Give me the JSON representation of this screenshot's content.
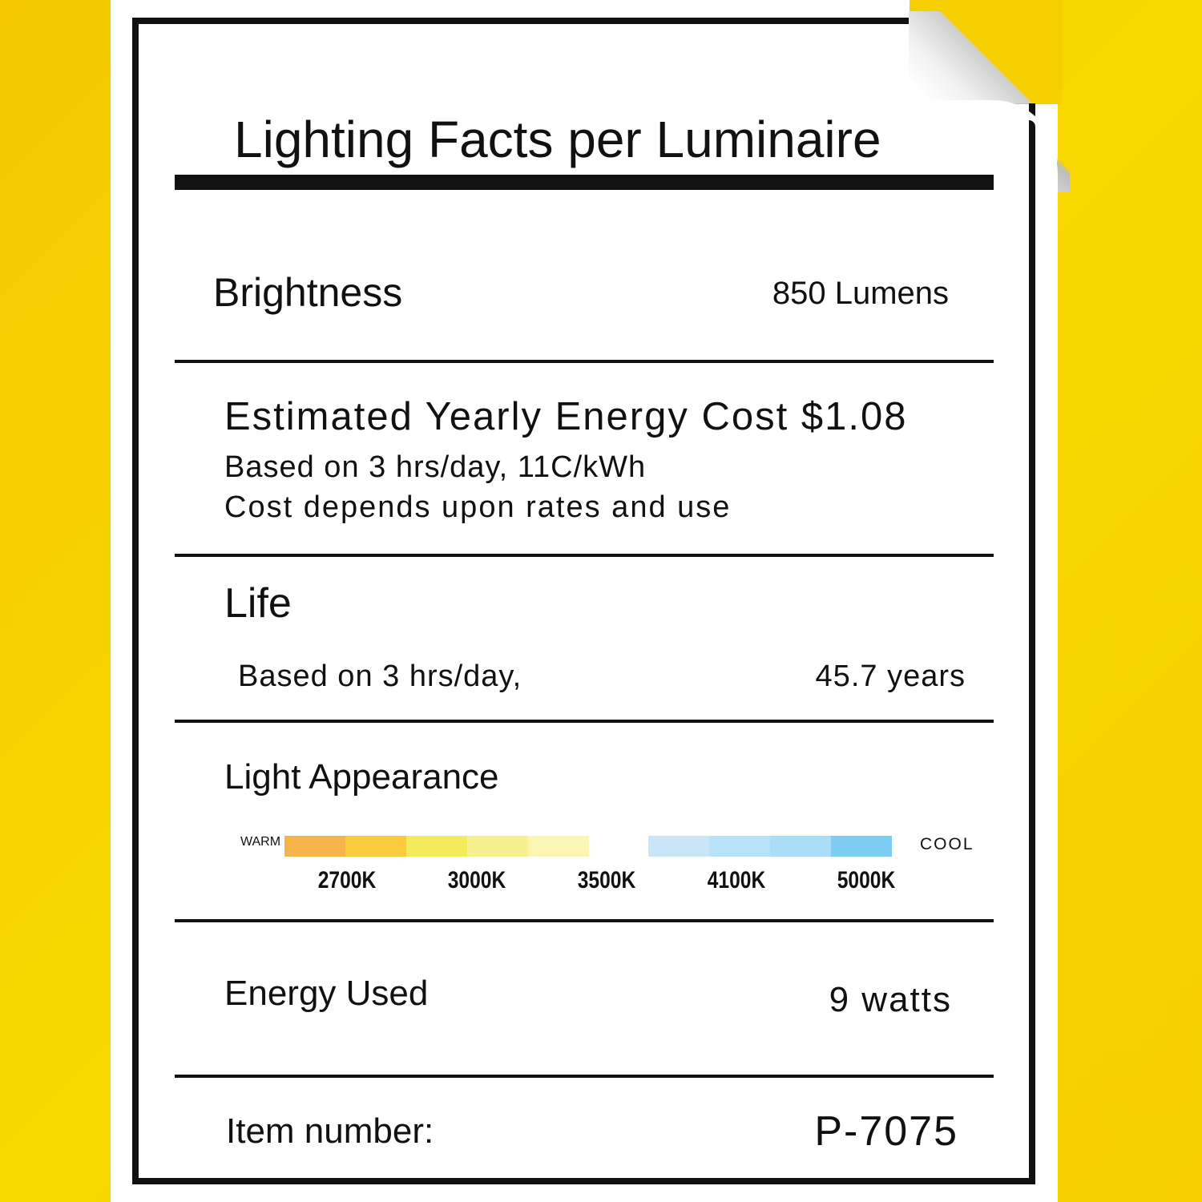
{
  "title": "Lighting Facts per Luminaire",
  "brightness": {
    "label": "Brightness",
    "value": "850 Lumens"
  },
  "energy_cost": {
    "label": "Estimated Yearly Energy Cost $1.08",
    "basis": "Based on 3 hrs/day, 11C/kWh",
    "note": "Cost depends upon rates and use"
  },
  "life": {
    "label": "Life",
    "basis": "Based on 3 hrs/day,",
    "value": "45.7 years"
  },
  "light_appearance": {
    "label": "Light Appearance",
    "warm_label": "WARM",
    "cool_label": "COOL",
    "warm_colors": [
      "#F5B54A",
      "#FBCB3E",
      "#F3EA5C",
      "#F8F08E",
      "#FBF6B6"
    ],
    "cool_colors": [
      "#CBE5F8",
      "#B7E2F9",
      "#A9DDF8",
      "#7DCCF2"
    ],
    "temperatures": [
      "2700K",
      "3000K",
      "3500K",
      "4100K",
      "5000K"
    ]
  },
  "energy_used": {
    "label": "Energy Used",
    "value": "9 watts"
  },
  "item": {
    "label": "Item number:",
    "value": "P-7075"
  },
  "colors": {
    "background": "#F7D600",
    "paper": "#FFFFFF",
    "ink": "#111111"
  }
}
